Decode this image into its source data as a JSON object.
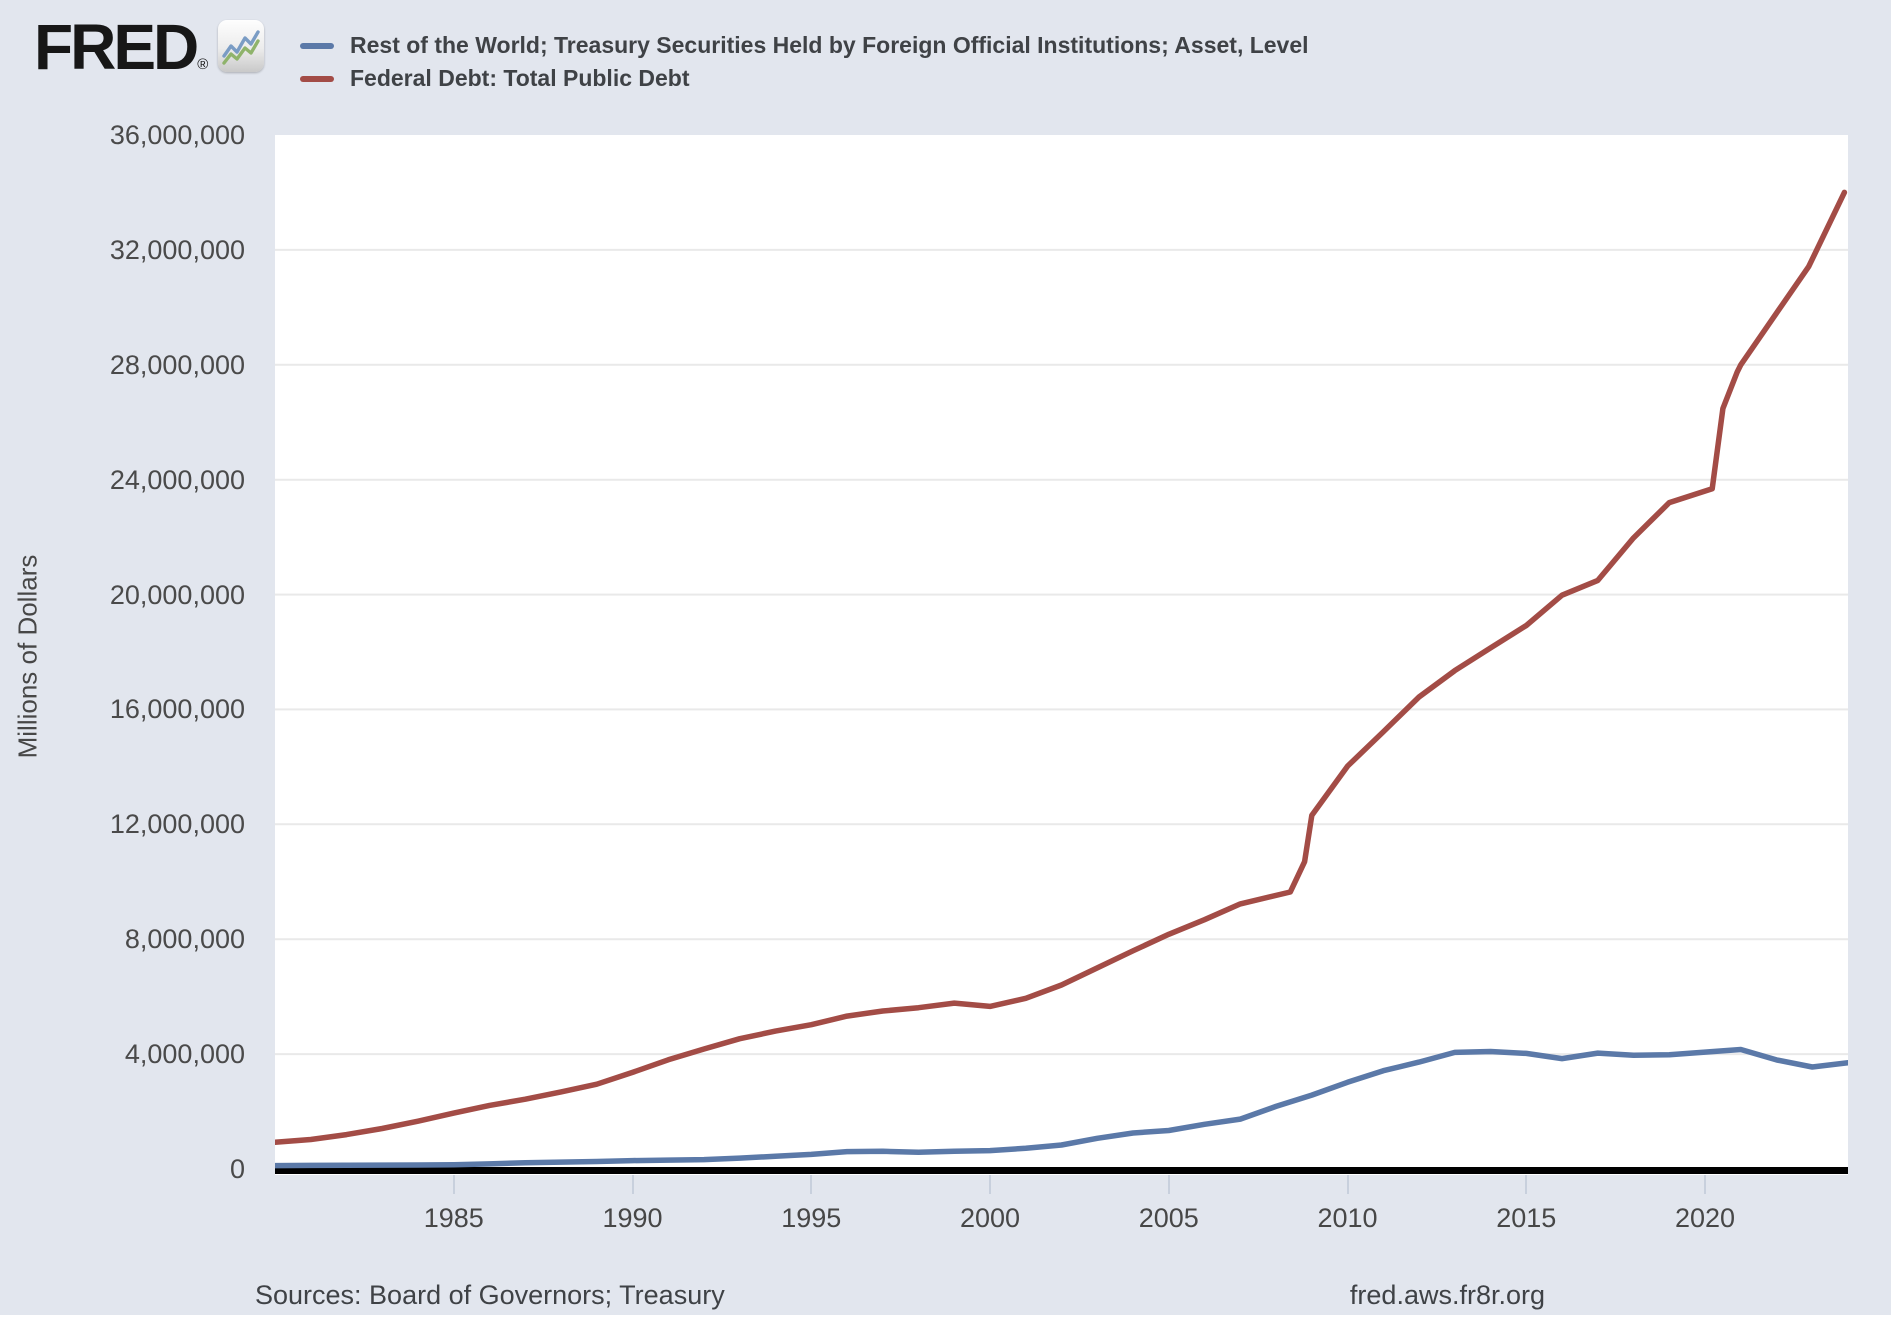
{
  "header": {
    "logo_text": "FRED",
    "logo_reg": "®",
    "legend": [
      {
        "label": "Rest of the World; Treasury Securities Held by Foreign Official Institutions; Asset, Level",
        "color": "#5b79a8"
      },
      {
        "label": "Federal Debt: Total Public Debt",
        "color": "#a34c46"
      }
    ]
  },
  "footer": {
    "sources": "Sources: Board of Governors; Treasury",
    "link": "fred.aws.fr8r.org"
  },
  "colors": {
    "background": "#e2e6ee",
    "plot_background": "#ffffff",
    "gridline": "#e9e9e9",
    "zero_axis": "#000000",
    "tick": "#c8d0dd",
    "series_blue": "#5b79a8",
    "series_red": "#a34c46"
  },
  "chart_data": {
    "type": "line",
    "title": "",
    "ylabel": "Millions of Dollars",
    "xlabel": "",
    "units": "Millions of Dollars",
    "xlim": [
      1980,
      2024
    ],
    "ylim": [
      0,
      36000000
    ],
    "grid": true,
    "legend_position": "top-left",
    "y_ticks": [
      {
        "value": 36000000,
        "label": "36,000,000"
      },
      {
        "value": 32000000,
        "label": "32,000,000"
      },
      {
        "value": 28000000,
        "label": "28,000,000"
      },
      {
        "value": 24000000,
        "label": "24,000,000"
      },
      {
        "value": 20000000,
        "label": "20,000,000"
      },
      {
        "value": 16000000,
        "label": "16,000,000"
      },
      {
        "value": 12000000,
        "label": "12,000,000"
      },
      {
        "value": 8000000,
        "label": "8,000,000"
      },
      {
        "value": 4000000,
        "label": "4,000,000"
      },
      {
        "value": 0,
        "label": "0"
      }
    ],
    "y_gridlines": [
      4000000,
      8000000,
      12000000,
      16000000,
      20000000,
      24000000,
      28000000,
      32000000
    ],
    "x_ticks": [
      {
        "value": 1985,
        "label": "1985"
      },
      {
        "value": 1990,
        "label": "1990"
      },
      {
        "value": 1995,
        "label": "1995"
      },
      {
        "value": 2000,
        "label": "2000"
      },
      {
        "value": 2005,
        "label": "2005"
      },
      {
        "value": 2010,
        "label": "2010"
      },
      {
        "value": 2015,
        "label": "2015"
      },
      {
        "value": 2020,
        "label": "2020"
      }
    ],
    "series": [
      {
        "name": "Rest of the World; Treasury Securities Held by Foreign Official Institutions; Asset, Level",
        "color": "#5b79a8",
        "points": [
          [
            1980,
            120000
          ],
          [
            1981,
            125000
          ],
          [
            1982,
            132000
          ],
          [
            1983,
            135000
          ],
          [
            1984,
            138000
          ],
          [
            1985,
            145000
          ],
          [
            1986,
            178000
          ],
          [
            1987,
            220000
          ],
          [
            1988,
            240000
          ],
          [
            1989,
            260000
          ],
          [
            1990,
            291000
          ],
          [
            1991,
            311000
          ],
          [
            1992,
            329000
          ],
          [
            1993,
            381000
          ],
          [
            1994,
            442000
          ],
          [
            1995,
            508000
          ],
          [
            1996,
            607000
          ],
          [
            1997,
            615000
          ],
          [
            1998,
            586000
          ],
          [
            1999,
            617000
          ],
          [
            2000,
            639000
          ],
          [
            2001,
            720000
          ],
          [
            2002,
            834000
          ],
          [
            2003,
            1070000
          ],
          [
            2004,
            1255000
          ],
          [
            2005,
            1340000
          ],
          [
            2006,
            1558000
          ],
          [
            2007,
            1736000
          ],
          [
            2008,
            2179000
          ],
          [
            2009,
            2573000
          ],
          [
            2010,
            3018000
          ],
          [
            2011,
            3423000
          ],
          [
            2012,
            3721000
          ],
          [
            2013,
            4058000
          ],
          [
            2014,
            4090000
          ],
          [
            2015,
            4024000
          ],
          [
            2016,
            3843000
          ],
          [
            2017,
            4034000
          ],
          [
            2018,
            3963000
          ],
          [
            2019,
            3975000
          ],
          [
            2020,
            4070000
          ],
          [
            2021,
            4160000
          ],
          [
            2022,
            3800000
          ],
          [
            2023,
            3550000
          ],
          [
            2024,
            3700000
          ]
        ]
      },
      {
        "name": "Federal Debt: Total Public Debt",
        "color": "#a34c46",
        "points": [
          [
            1980,
            930210
          ],
          [
            1981,
            1028729
          ],
          [
            1982,
            1197073
          ],
          [
            1983,
            1410702
          ],
          [
            1984,
            1662966
          ],
          [
            1985,
            1945941
          ],
          [
            1986,
            2214835
          ],
          [
            1987,
            2431715
          ],
          [
            1988,
            2684392
          ],
          [
            1989,
            2952994
          ],
          [
            1990,
            3364820
          ],
          [
            1991,
            3801698
          ],
          [
            1992,
            4177009
          ],
          [
            1993,
            4535687
          ],
          [
            1994,
            4800150
          ],
          [
            1995,
            5023004
          ],
          [
            1996,
            5323172
          ],
          [
            1997,
            5502388
          ],
          [
            1998,
            5614217
          ],
          [
            1999,
            5776091
          ],
          [
            2000,
            5662216
          ],
          [
            2001,
            5943439
          ],
          [
            2002,
            6405707
          ],
          [
            2003,
            7001312
          ],
          [
            2004,
            7596143
          ],
          [
            2005,
            8170424
          ],
          [
            2006,
            8680224
          ],
          [
            2007,
            9229172
          ],
          [
            2008.4,
            9645000
          ],
          [
            2008.8,
            10699805
          ],
          [
            2009,
            12311349
          ],
          [
            2010,
            14025215
          ],
          [
            2011,
            15222940
          ],
          [
            2012,
            16432730
          ],
          [
            2013,
            17351970
          ],
          [
            2014,
            18141444
          ],
          [
            2015,
            18922179
          ],
          [
            2016,
            19976827
          ],
          [
            2017,
            20492747
          ],
          [
            2018,
            21974096
          ],
          [
            2019,
            23201380
          ],
          [
            2020.2,
            23686000
          ],
          [
            2020.5,
            26477000
          ],
          [
            2020.9,
            27747798
          ],
          [
            2021,
            28000000
          ],
          [
            2021.9,
            29617215
          ],
          [
            2022.9,
            31419689
          ],
          [
            2023.9,
            34001494
          ]
        ]
      }
    ]
  }
}
